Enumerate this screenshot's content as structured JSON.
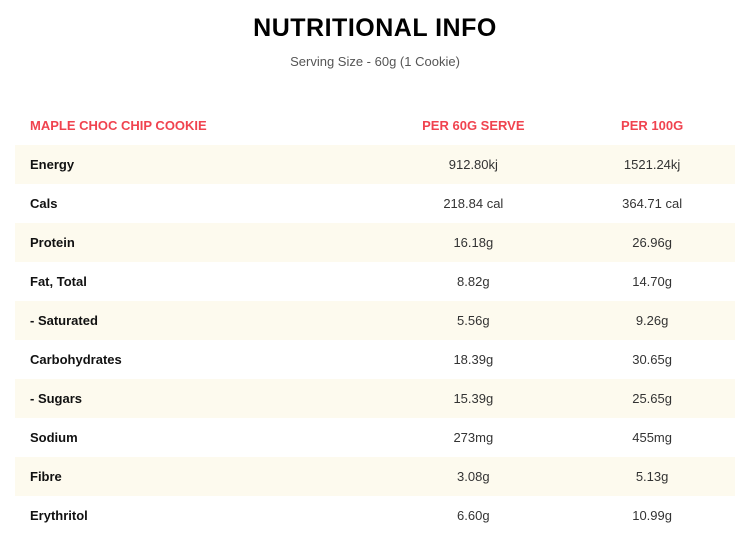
{
  "title": "NUTRITIONAL INFO",
  "subtitle": "Serving Size - 60g (1 Cookie)",
  "accent_color": "#f0434f",
  "headers": [
    "MAPLE CHOC CHIP COOKIE",
    "PER 60G SERVE",
    "PER 100G"
  ],
  "rows": [
    [
      "Energy",
      "912.80kj",
      "1521.24kj"
    ],
    [
      "Cals",
      "218.84 cal",
      "364.71 cal"
    ],
    [
      "Protein",
      "16.18g",
      "26.96g"
    ],
    [
      "Fat, Total",
      "8.82g",
      "14.70g"
    ],
    [
      "- Saturated",
      "5.56g",
      "9.26g"
    ],
    [
      "Carbohydrates",
      "18.39g",
      "30.65g"
    ],
    [
      "- Sugars",
      "15.39g",
      "25.65g"
    ],
    [
      "Sodium",
      "273mg",
      "455mg"
    ],
    [
      "Fibre",
      "3.08g",
      "5.13g"
    ],
    [
      "Erythritol",
      "6.60g",
      "10.99g"
    ]
  ]
}
